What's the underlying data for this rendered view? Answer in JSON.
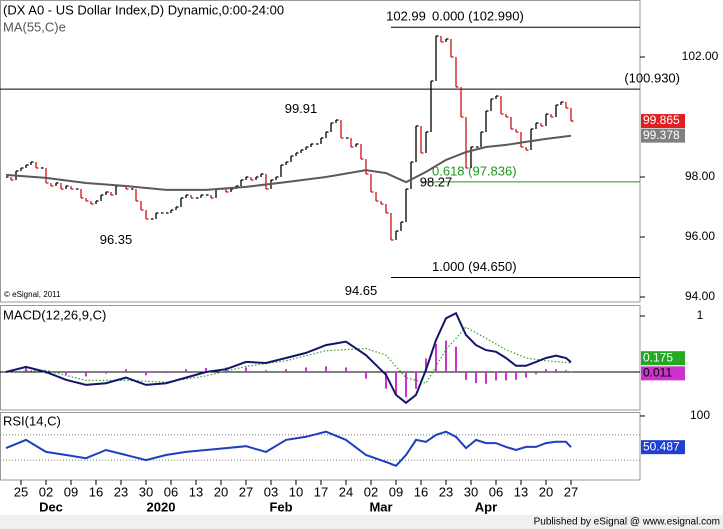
{
  "footer": "Published by eSignal @ www.esignal.com",
  "chart_data": [
    {
      "type": "bar",
      "title": "(DX A0 - US Dollar Index,D) Dynamic,0:00-24:00",
      "copyright": "© eSignal, 2011",
      "up_color": "#000000",
      "down_color": "#d01010",
      "tag_color": "#e02020",
      "ylim": [
        93.833,
        103.9
      ],
      "yticks": [
        {
          "value": 102,
          "label": "102.00"
        },
        {
          "value": 98,
          "label": "98.00"
        },
        {
          "value": 96,
          "label": "96.00"
        },
        {
          "value": 94,
          "label": "94.00"
        }
      ],
      "close": [
        98.0,
        97.9,
        98.2,
        98.3,
        98.4,
        98.5,
        98.3,
        98.3,
        97.8,
        97.7,
        97.8,
        97.6,
        97.7,
        97.6,
        97.6,
        97.3,
        97.2,
        97.1,
        97.2,
        97.4,
        97.5,
        97.4,
        97.7,
        97.7,
        97.6,
        97.6,
        97.2,
        96.9,
        96.6,
        96.6,
        96.8,
        96.8,
        96.8,
        96.9,
        97.0,
        97.3,
        97.4,
        97.3,
        97.3,
        97.4,
        97.4,
        97.3,
        97.6,
        97.6,
        97.5,
        97.6,
        97.7,
        97.9,
        98.0,
        97.9,
        98.0,
        98.1,
        97.6,
        97.9,
        98.0,
        98.4,
        98.5,
        98.7,
        98.8,
        98.9,
        99.0,
        99.1,
        99.1,
        99.3,
        99.5,
        99.8,
        99.9,
        99.3,
        99.3,
        99.0,
        99.1,
        98.6,
        98.1,
        97.5,
        97.2,
        97.1,
        96.8,
        95.9,
        96.2,
        96.5,
        97.6,
        98.5,
        99.7,
        98.8,
        99.5,
        101.2,
        102.7,
        102.5,
        102.6,
        102.0,
        101.0,
        100.0,
        98.3,
        99.0,
        99.0,
        99.5,
        100.2,
        100.6,
        100.7,
        100.1,
        100.0,
        99.6,
        99.5,
        99.0,
        98.9,
        99.6,
        99.8,
        99.7,
        100.1,
        100.0,
        100.4,
        100.5,
        100.3,
        99.865
      ],
      "ma": {
        "name": "MA(55,C)e",
        "color": "#5a5a5a",
        "tag_color": "#808080",
        "x": [
          0,
          8,
          16,
          24,
          32,
          40,
          48,
          56,
          64,
          72,
          76,
          80,
          84,
          88,
          92,
          96,
          100,
          104,
          108,
          113
        ],
        "values": [
          98.07,
          97.97,
          97.8,
          97.7,
          97.57,
          97.57,
          97.67,
          97.83,
          98.0,
          98.23,
          98.13,
          97.83,
          98.17,
          98.57,
          98.83,
          99.0,
          99.07,
          99.17,
          99.27,
          99.378
        ]
      },
      "levels": [
        {
          "value": 102.99,
          "label": "0.000 (102.990)",
          "from": 77,
          "color": "#000000"
        },
        {
          "value": 100.93,
          "label": "(100.930)",
          "color": "#000000"
        },
        {
          "value": 97.836,
          "label": "0.618 (97.836)",
          "from": 83,
          "color": "#1a9a1a"
        },
        {
          "value": 94.65,
          "label": "1.000 (94.650)",
          "from": 77,
          "color": "#000000"
        }
      ],
      "annotations": [
        {
          "x": 86,
          "value": 102.99
        },
        {
          "x": 65,
          "value": 99.91
        },
        {
          "x": 28,
          "value": 96.35
        },
        {
          "x": 77,
          "value": 94.65
        },
        {
          "x": 92,
          "value": 98.27
        }
      ]
    },
    {
      "type": "macd",
      "title": "MACD(12,26,9,C)",
      "ylim": [
        -0.679,
        1.196
      ],
      "yticks": [
        1
      ],
      "x": [
        0,
        4,
        8,
        12,
        16,
        20,
        24,
        28,
        32,
        36,
        40,
        44,
        48,
        52,
        56,
        60,
        64,
        68,
        72,
        76,
        78,
        80,
        82,
        84,
        86,
        88,
        90,
        92,
        94,
        96,
        98,
        100,
        102,
        104,
        106,
        108,
        110,
        112,
        113
      ],
      "series": [
        {
          "name": "MACD",
          "color": "#14146e",
          "tag_color": "#22aa22",
          "values": [
            0.0,
            0.09,
            0.0,
            -0.14,
            -0.23,
            -0.2,
            -0.1,
            -0.23,
            -0.2,
            -0.1,
            0.0,
            0.05,
            0.18,
            0.16,
            0.25,
            0.34,
            0.48,
            0.54,
            0.3,
            -0.05,
            -0.41,
            -0.55,
            -0.41,
            0.04,
            0.57,
            0.96,
            1.05,
            0.66,
            0.48,
            0.39,
            0.36,
            0.25,
            0.11,
            0.11,
            0.18,
            0.25,
            0.29,
            0.25,
            0.175
          ]
        },
        {
          "name": "Histogram",
          "color": "#cc33cc",
          "tag_color": "#cc33cc",
          "values": [
            0.0,
            0.08,
            -0.03,
            -0.05,
            -0.08,
            -0.03,
            0.05,
            -0.06,
            -0.02,
            0.05,
            0.07,
            0.08,
            0.08,
            0.03,
            0.05,
            0.08,
            0.1,
            0.08,
            -0.12,
            -0.3,
            -0.4,
            -0.45,
            -0.3,
            0.24,
            0.5,
            0.56,
            0.45,
            -0.14,
            -0.2,
            -0.21,
            -0.15,
            -0.15,
            -0.14,
            -0.1,
            -0.04,
            0.05,
            0.05,
            0.03,
            0.011
          ]
        }
      ],
      "signal": {
        "name": "Signal",
        "color": "#2ca02c",
        "x": [
          0,
          8,
          16,
          24,
          32,
          40,
          48,
          56,
          64,
          72,
          76,
          80,
          84,
          88,
          92,
          96,
          100,
          104,
          108,
          113
        ],
        "values": [
          0.0,
          0.03,
          -0.15,
          -0.15,
          -0.18,
          -0.07,
          0.1,
          0.2,
          0.38,
          0.42,
          0.3,
          -0.1,
          -0.2,
          0.4,
          0.8,
          0.6,
          0.4,
          0.25,
          0.2,
          0.164
        ]
      }
    },
    {
      "type": "line",
      "title": "RSI(14,C)",
      "color": "#1f3fbf",
      "tag_color": "#2040d0",
      "ylim": [
        -1.6,
        106.3
      ],
      "yticks": [
        100
      ],
      "bands": [
        70,
        30
      ],
      "x": [
        0,
        4,
        8,
        12,
        16,
        20,
        24,
        28,
        32,
        36,
        40,
        44,
        48,
        52,
        56,
        60,
        64,
        68,
        72,
        76,
        78,
        80,
        82,
        84,
        86,
        88,
        90,
        92,
        94,
        96,
        98,
        100,
        102,
        104,
        106,
        108,
        110,
        112,
        113
      ],
      "values": [
        49,
        62,
        43,
        38,
        33,
        46,
        38,
        30,
        38,
        43,
        46,
        49,
        52,
        43,
        62,
        67,
        75,
        62,
        38,
        27,
        21,
        38,
        62,
        59,
        70,
        75,
        67,
        49,
        62,
        57,
        57,
        51,
        46,
        51,
        51,
        57,
        59,
        59,
        50.487
      ],
      "xlim": [
        -1.2,
        126.8
      ],
      "xticks": [
        {
          "value": 3,
          "label": "25"
        },
        {
          "value": 8,
          "label": "02"
        },
        {
          "value": 13,
          "label": "09"
        },
        {
          "value": 18,
          "label": "16"
        },
        {
          "value": 23,
          "label": "23"
        },
        {
          "value": 28,
          "label": "30"
        },
        {
          "value": 33,
          "label": "06"
        },
        {
          "value": 38,
          "label": "13"
        },
        {
          "value": 43,
          "label": "20"
        },
        {
          "value": 48,
          "label": "27"
        },
        {
          "value": 53,
          "label": "03"
        },
        {
          "value": 58,
          "label": "10"
        },
        {
          "value": 63,
          "label": "17"
        },
        {
          "value": 68,
          "label": "24"
        },
        {
          "value": 73,
          "label": "02"
        },
        {
          "value": 78,
          "label": "09"
        },
        {
          "value": 83,
          "label": "16"
        },
        {
          "value": 88,
          "label": "23"
        },
        {
          "value": 93,
          "label": "30"
        },
        {
          "value": 98,
          "label": "06"
        },
        {
          "value": 103,
          "label": "13"
        },
        {
          "value": 108,
          "label": "20"
        },
        {
          "value": 113,
          "label": "27"
        }
      ],
      "months": [
        {
          "value": 9,
          "label": "Dec"
        },
        {
          "value": 31,
          "label": "2020"
        },
        {
          "value": 55,
          "label": "Feb"
        },
        {
          "value": 75,
          "label": "Mar"
        },
        {
          "value": 96,
          "label": "Apr"
        }
      ]
    }
  ]
}
